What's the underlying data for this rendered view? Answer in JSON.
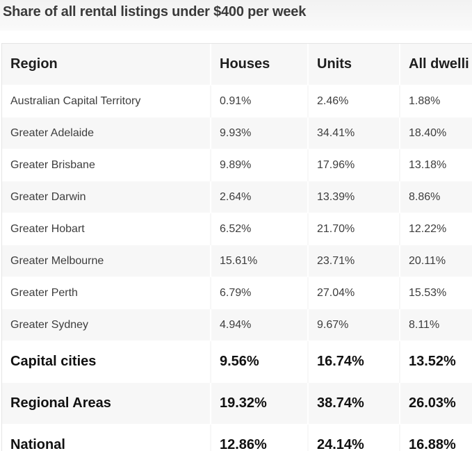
{
  "chart_data": {
    "type": "table",
    "title": "Share of all rental listings under $400 per week",
    "columns": [
      "Region",
      "Houses",
      "Units",
      "All dwelli"
    ],
    "rows": [
      {
        "region": "Australian Capital Territory",
        "houses": "0.91%",
        "units": "2.46%",
        "all": "1.88%"
      },
      {
        "region": "Greater Adelaide",
        "houses": "9.93%",
        "units": "34.41%",
        "all": "18.40%"
      },
      {
        "region": "Greater Brisbane",
        "houses": "9.89%",
        "units": "17.96%",
        "all": "13.18%"
      },
      {
        "region": "Greater Darwin",
        "houses": "2.64%",
        "units": "13.39%",
        "all": "8.86%"
      },
      {
        "region": "Greater Hobart",
        "houses": "6.52%",
        "units": "21.70%",
        "all": "12.22%"
      },
      {
        "region": "Greater Melbourne",
        "houses": "15.61%",
        "units": "23.71%",
        "all": "20.11%"
      },
      {
        "region": "Greater Perth",
        "houses": "6.79%",
        "units": "27.04%",
        "all": "15.53%"
      },
      {
        "region": "Greater Sydney",
        "houses": "4.94%",
        "units": "9.67%",
        "all": "8.11%"
      }
    ],
    "summary_rows": [
      {
        "region": "Capital cities",
        "houses": "9.56%",
        "units": "16.74%",
        "all": "13.52%"
      },
      {
        "region": "Regional Areas",
        "houses": "19.32%",
        "units": "38.74%",
        "all": "26.03%"
      },
      {
        "region": "National",
        "houses": "12.86%",
        "units": "24.14%",
        "all": "16.88%"
      }
    ]
  }
}
